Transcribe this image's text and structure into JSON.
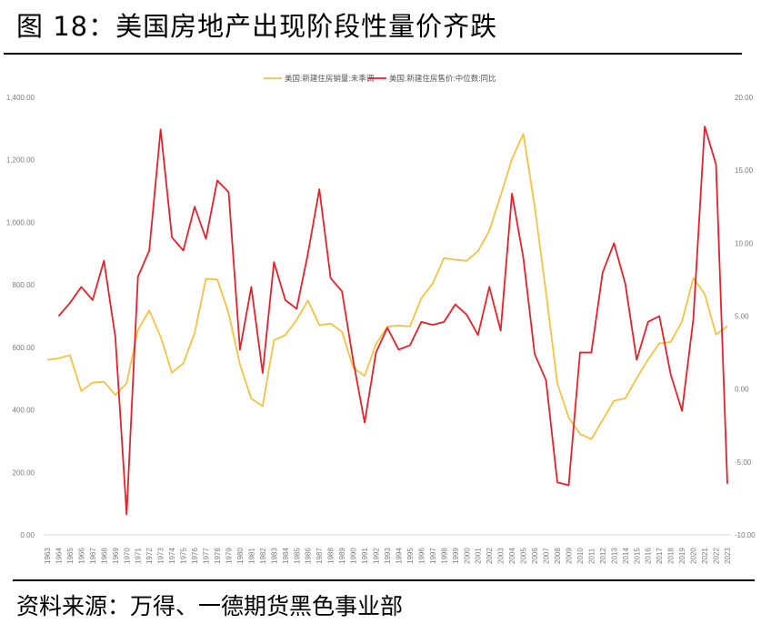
{
  "page": {
    "title": "图 18：美国房地产出现阶段性量价齐跌",
    "source": "资料来源：万得、一德期货黑色事业部"
  },
  "chart_data": {
    "type": "line",
    "x": [
      "1963",
      "1964",
      "1965",
      "1966",
      "1967",
      "1968",
      "1969",
      "1970",
      "1971",
      "1972",
      "1973",
      "1974",
      "1975",
      "1976",
      "1977",
      "1978",
      "1979",
      "1980",
      "1981",
      "1982",
      "1983",
      "1984",
      "1985",
      "1986",
      "1987",
      "1988",
      "1989",
      "1990",
      "1991",
      "1992",
      "1993",
      "1994",
      "1995",
      "1996",
      "1997",
      "1998",
      "1999",
      "2000",
      "2001",
      "2002",
      "2003",
      "2004",
      "2005",
      "2006",
      "2007",
      "2008",
      "2009",
      "2010",
      "2011",
      "2012",
      "2013",
      "2014",
      "2015",
      "2016",
      "2017",
      "2018",
      "2019",
      "2020",
      "2021",
      "2022",
      "2023"
    ],
    "left_axis": {
      "ylim": [
        0,
        1400
      ],
      "ticks": [
        "0.00",
        "200.00",
        "400.00",
        "600.00",
        "800.00",
        "1,000.00",
        "1,200.00",
        "1,400.00"
      ],
      "tick_values": [
        0,
        200,
        400,
        600,
        800,
        1000,
        1200,
        1400
      ]
    },
    "right_axis": {
      "ylim": [
        -10,
        20
      ],
      "ticks": [
        "-10.00",
        "-5.00",
        "0.00",
        "5.00",
        "10.00",
        "15.00",
        "20.00"
      ],
      "tick_values": [
        -10,
        -5,
        0,
        5,
        10,
        15,
        20
      ]
    },
    "series": [
      {
        "name": "美国:新建住房销量:未季调",
        "axis": "left",
        "color": "#F5C242",
        "values": [
          560,
          565,
          575,
          460,
          487,
          490,
          448,
          485,
          656,
          718,
          634,
          519,
          549,
          646,
          819,
          817,
          709,
          545,
          436,
          412,
          623,
          639,
          688,
          750,
          671,
          676,
          650,
          534,
          509,
          610,
          666,
          670,
          667,
          757,
          804,
          886,
          880,
          877,
          908,
          973,
          1086,
          1203,
          1283,
          1051,
          776,
          485,
          375,
          323,
          306,
          368,
          429,
          437,
          501,
          561,
          613,
          617,
          683,
          822,
          771,
          641,
          668
        ]
      },
      {
        "name": "美国:新建住房售价:中位数:同比",
        "axis": "right",
        "color": "#E8202A",
        "values": [
          null,
          5.0,
          5.9,
          7.0,
          6.1,
          8.8,
          3.6,
          -8.6,
          7.7,
          9.5,
          17.8,
          10.4,
          9.5,
          12.5,
          10.3,
          14.3,
          13.5,
          2.7,
          7.0,
          1.1,
          8.7,
          6.1,
          5.5,
          9.3,
          13.7,
          7.6,
          6.7,
          1.9,
          -2.3,
          2.5,
          4.2,
          2.7,
          3.0,
          4.6,
          4.4,
          4.6,
          5.8,
          5.1,
          3.7,
          7.0,
          4.0,
          13.4,
          9.0,
          2.4,
          0.6,
          -6.4,
          -6.6,
          2.5,
          2.5,
          8.0,
          10.0,
          7.2,
          2.0,
          4.6,
          5.0,
          1.0,
          -1.5,
          4.8,
          18.0,
          15.4,
          -6.5
        ]
      }
    ],
    "legend_position": "top-center",
    "grid": false
  }
}
